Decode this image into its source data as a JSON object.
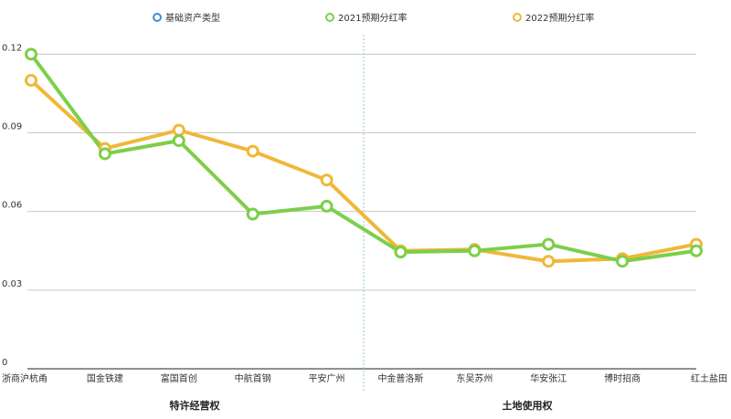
{
  "chart_data": {
    "type": "line",
    "categories": [
      "浙商沪杭甬",
      "国金铁建",
      "富国首创",
      "中航首钢",
      "平安广州",
      "中金普洛斯",
      "东吴苏州",
      "华安张江",
      "博时招商",
      "红土盐田"
    ],
    "groups": [
      {
        "label": "特许经营权",
        "categories": [
          "浙商沪杭甬",
          "国金铁建",
          "富国首创",
          "中航首钢",
          "平安广州"
        ]
      },
      {
        "label": "土地使用权",
        "categories": [
          "中金普洛斯",
          "东吴苏州",
          "华安张江",
          "博时招商",
          "红土盐田"
        ]
      }
    ],
    "legend": [
      {
        "name": "基础资产类型",
        "color": "#3b8fd9"
      },
      {
        "name": "2021预期分红率",
        "color": "#7ccf4a"
      },
      {
        "name": "2022预期分红率",
        "color": "#f0b83a"
      }
    ],
    "series": [
      {
        "name": "2022预期分红率",
        "color": "#f0b83a",
        "values": [
          0.11,
          0.084,
          0.091,
          0.083,
          0.072,
          0.045,
          0.0455,
          0.041,
          0.042,
          0.0475
        ]
      },
      {
        "name": "2021预期分红率",
        "color": "#7ccf4a",
        "values": [
          0.12,
          0.082,
          0.087,
          0.059,
          0.062,
          0.0445,
          0.045,
          0.0475,
          0.041,
          0.045
        ]
      }
    ],
    "ylim": [
      0,
      0.13
    ],
    "yticks": [
      0,
      0.03,
      0.06,
      0.09,
      0.12
    ],
    "ytick_labels": [
      "0",
      "0.03",
      "0.06",
      "0.09",
      "0.12"
    ],
    "grid": true,
    "legend_position": "top"
  }
}
